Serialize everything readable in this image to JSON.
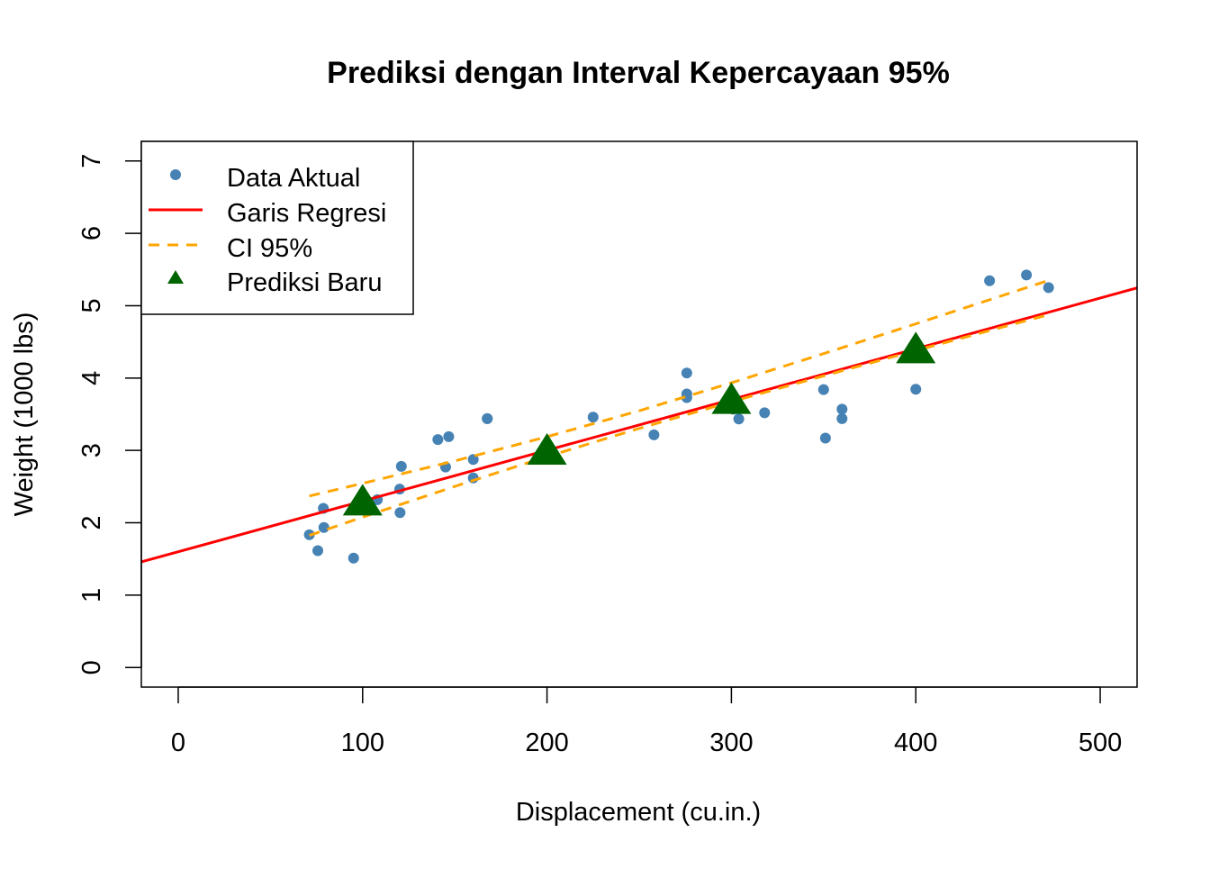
{
  "chart_data": {
    "type": "scatter",
    "title": "Prediksi dengan Interval Kepercayaan 95%",
    "xlabel": "Displacement (cu.in.)",
    "ylabel": "Weight (1000 lbs)",
    "xlim": [
      -20,
      520
    ],
    "ylim": [
      -0.27,
      7.27
    ],
    "xticks": [
      0,
      100,
      200,
      300,
      400,
      500
    ],
    "yticks": [
      0,
      1,
      2,
      3,
      4,
      5,
      6,
      7
    ],
    "grid": false,
    "legend_position": "top-left",
    "legend": [
      "Data Aktual",
      "Garis Regresi",
      "CI 95%",
      "Prediksi Baru"
    ],
    "colors": {
      "points": "#4682B4",
      "regression": "#FF0000",
      "ci": "#FFA500",
      "prediction": "#006400"
    },
    "points": {
      "x": [
        160,
        160,
        108,
        258,
        360,
        225,
        360,
        146.7,
        140.8,
        167.6,
        167.6,
        275.8,
        275.8,
        275.8,
        472,
        460,
        440,
        78.7,
        75.7,
        71.1,
        120.1,
        318,
        304,
        350,
        400,
        79,
        120.3,
        95.1,
        351,
        145,
        301,
        121
      ],
      "y": [
        2.62,
        2.875,
        2.32,
        3.215,
        3.44,
        3.46,
        3.57,
        3.19,
        3.15,
        3.44,
        3.44,
        4.07,
        3.73,
        3.78,
        5.25,
        5.424,
        5.345,
        2.2,
        1.615,
        1.835,
        2.465,
        3.52,
        3.435,
        3.84,
        3.845,
        1.935,
        2.14,
        1.513,
        3.17,
        2.77,
        3.57,
        2.78
      ]
    },
    "regression": {
      "intercept": 1.5998,
      "slope": 0.0070103
    },
    "ci": {
      "x": [
        71.1,
        100,
        150,
        200,
        250,
        300,
        350,
        400,
        450,
        472
      ],
      "lower": [
        1.826,
        2.078,
        2.503,
        2.915,
        3.304,
        3.673,
        4.03,
        4.38,
        4.725,
        4.876
      ],
      "upper": [
        2.37,
        2.545,
        2.855,
        3.189,
        3.548,
        3.934,
        4.337,
        4.749,
        5.165,
        5.349
      ]
    },
    "predictions": {
      "x": [
        100,
        200,
        300,
        400
      ],
      "y": [
        2.301,
        3.002,
        3.703,
        4.404
      ]
    }
  }
}
